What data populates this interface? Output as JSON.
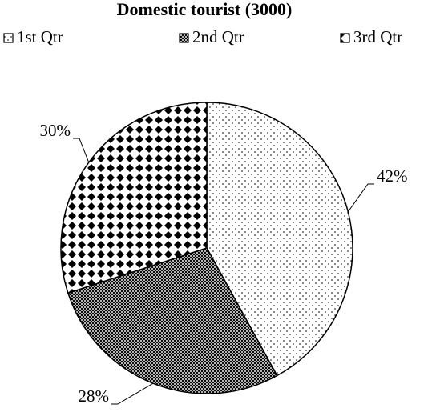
{
  "chart_data": {
    "type": "pie",
    "title": "Domestic tourist (3000)",
    "categories": [
      "1st Qtr",
      "2nd Qtr",
      "3rd Qtr"
    ],
    "values": [
      42,
      28,
      30
    ],
    "value_labels": [
      "42%",
      "28%",
      "30%"
    ],
    "patterns": [
      "dots",
      "crosshatch",
      "diamonds"
    ]
  }
}
